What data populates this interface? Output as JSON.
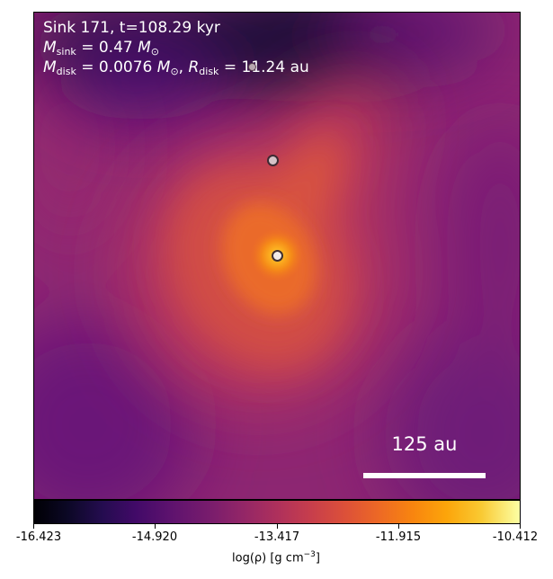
{
  "title": "Sink 171, t=108.29 kyr",
  "sink_mass": {
    "symbol": "M",
    "sub": "sink",
    "value": "= 0.47",
    "unit": "M",
    "unit_sub": "⊙"
  },
  "disk": {
    "mass_symbol": "M",
    "mass_sub": "disk",
    "mass_value": "= 0.0076",
    "mass_unit": "M",
    "mass_unit_sub": "⊙",
    "separator": ",",
    "radius_symbol": "R",
    "radius_sub": "disk",
    "radius_value": "= 11.24",
    "radius_unit": "au"
  },
  "scale_bar": {
    "label": "125 au"
  },
  "colorbar": {
    "colormap": "inferno",
    "ticks": [
      "-16.423",
      "-14.920",
      "-13.417",
      "-11.915",
      "-10.412"
    ],
    "label_main": "log(ρ) [g cm",
    "label_exp": "−3",
    "label_end": "]"
  },
  "colors": {
    "background_map": "#8a2573",
    "core": "#ffd040",
    "text": "#ffffff"
  }
}
